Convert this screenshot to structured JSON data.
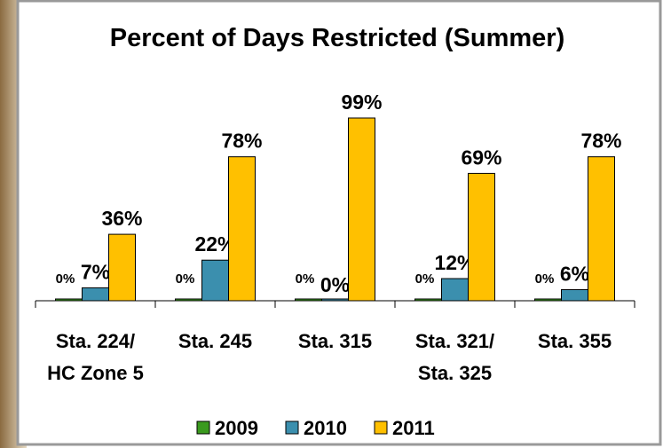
{
  "chart_data": {
    "type": "bar",
    "title": "Percent of Days Restricted (Summer)",
    "categories": [
      "Sta. 224/\nHC Zone 5",
      "Sta. 245",
      "Sta. 315",
      "Sta. 321/\nSta. 325",
      "Sta. 355"
    ],
    "series": [
      {
        "name": "2009",
        "color": "#3a9a1e",
        "values": [
          0,
          0,
          0,
          0,
          0
        ],
        "value_labels": [
          "0%",
          "0%",
          "0%",
          "0%",
          "0%"
        ]
      },
      {
        "name": "2010",
        "color": "#3b8fae",
        "values": [
          7,
          22,
          0,
          12,
          6
        ],
        "value_labels": [
          "7%",
          "22%",
          "0%",
          "12%",
          "6%"
        ]
      },
      {
        "name": "2011",
        "color": "#ffc000",
        "values": [
          36,
          78,
          99,
          69,
          78
        ],
        "value_labels": [
          "36%",
          "78%",
          "99%",
          "69%",
          "78%"
        ]
      }
    ],
    "legend": "bottom"
  }
}
